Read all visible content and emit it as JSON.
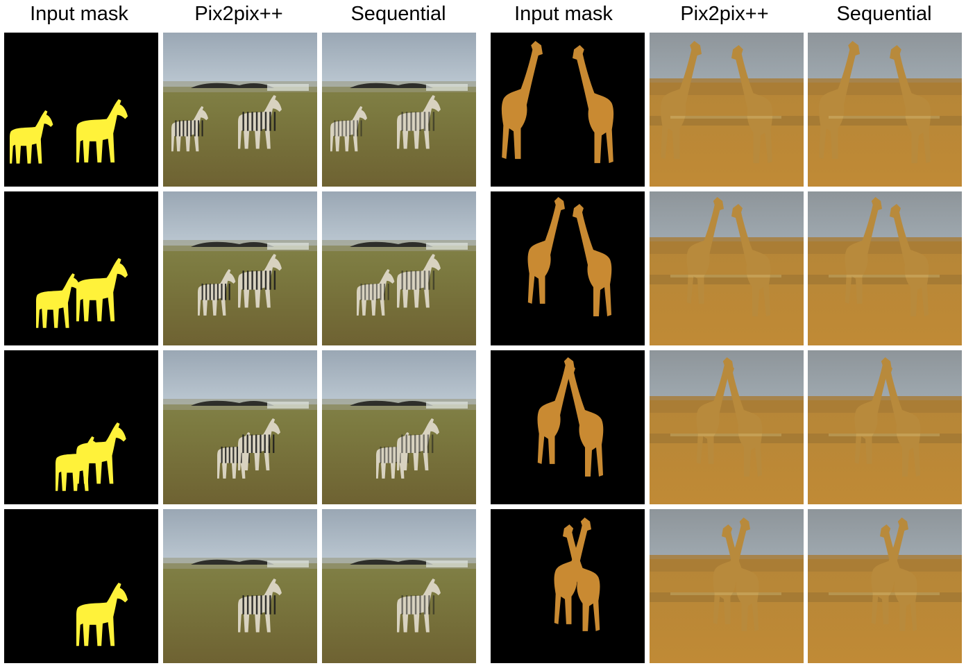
{
  "headers": [
    "Input mask",
    "Pix2pix++",
    "Sequential",
    "Input mask",
    "Pix2pix++",
    "Sequential"
  ],
  "colors": {
    "mask_background": "#000000",
    "zebra_mask": "#fff23a",
    "giraffe_mask": "#c98a32",
    "savanna_grass": "#7c7a40",
    "savanna_sky": "#bcc8d2",
    "giraffe_ground": "#c08a36",
    "giraffe_sky": "#9fa9b0"
  },
  "rows": [
    {
      "zebra_pose": "two zebras apart",
      "giraffe_pose": "two giraffes apart"
    },
    {
      "zebra_pose": "zebras close",
      "giraffe_pose": "giraffes touching"
    },
    {
      "zebra_pose": "zebras overlapping",
      "giraffe_pose": "giraffes crossing"
    },
    {
      "zebra_pose": "single zebra",
      "giraffe_pose": "giraffes merged"
    }
  ]
}
